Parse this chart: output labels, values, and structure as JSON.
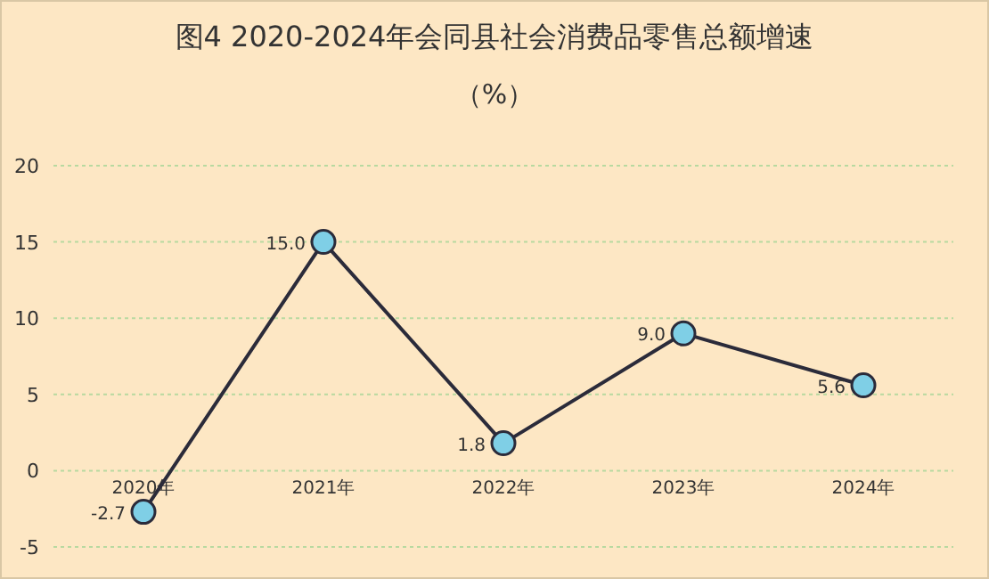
{
  "chart_data": {
    "type": "line",
    "title": "图4   2020-2024年会同县社会消费品零售总额增速",
    "subtitle": "（%）",
    "categories": [
      "2020年",
      "2021年",
      "2022年",
      "2023年",
      "2024年"
    ],
    "series": [
      {
        "color": "#2b2b3a",
        "values": [
          -2.7,
          15.0,
          1.8,
          9.0,
          5.6
        ],
        "value_labels": [
          "-2.7",
          "15.0",
          "1.8",
          "9.0",
          "5.6"
        ]
      }
    ],
    "ylim": [
      -5,
      20
    ],
    "yticks": [
      -5,
      0,
      5,
      10,
      15,
      20
    ],
    "grid": "y",
    "marker": "circle",
    "line_style": "solid"
  }
}
